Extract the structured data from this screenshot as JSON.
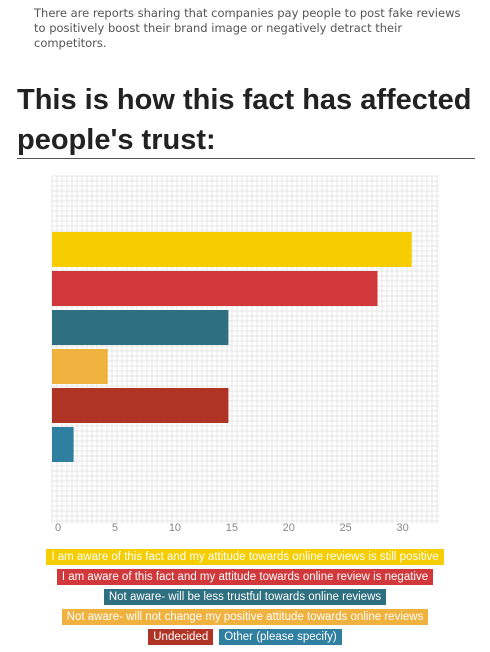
{
  "intro_text": "There are reports sharing that companies pay people to post fake reviews to positively boost their brand image or negatively detract their competitors.",
  "heading": "This is how this fact has affected people's trust:",
  "chart_data": {
    "type": "bar",
    "orientation": "horizontal",
    "categories": [
      "I am aware of this fact and my attitude towards online reviews is still positive",
      "I am aware of this fact and my attitude towards online review is negative",
      "Not aware- will be less trustful towards online reviews",
      "Not aware- will not change my positive attitude towards online reviews",
      "Undecided",
      "Other (please specify)"
    ],
    "values": [
      31.6,
      28.6,
      15.5,
      4.9,
      15.5,
      1.9
    ],
    "colors": [
      "#f5cd00",
      "#d1383c",
      "#2e6f80",
      "#f0b23e",
      "#b03425",
      "#2e7fa0"
    ],
    "xlim": [
      0,
      34
    ],
    "xticks": [
      "0",
      "5",
      "10",
      "15",
      "20",
      "25",
      "30"
    ],
    "tick_values": [
      0,
      5,
      10,
      15,
      20,
      25,
      30
    ],
    "grid": true,
    "legend_position": "bottom"
  },
  "legend": [
    {
      "label": "I am aware of this fact and my attitude towards online reviews is still positive",
      "color": "#f5cd00"
    },
    {
      "label": "I am aware of this fact and my attitude towards online review is negative",
      "color": "#d1383c"
    },
    {
      "label": "Not aware- will be less trustful towards online reviews",
      "color": "#2e6f80"
    },
    {
      "label": "Not aware- will not change my positive attitude towards online reviews",
      "color": "#f0b23e"
    },
    {
      "label": "Undecided",
      "color": "#b03425"
    },
    {
      "label": "Other (please specify)",
      "color": "#2e7fa0"
    }
  ]
}
